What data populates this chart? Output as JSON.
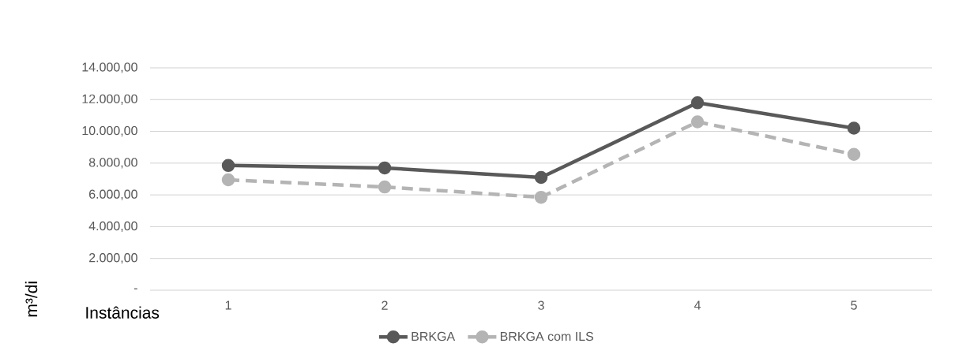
{
  "chart_data": {
    "type": "line",
    "categories": [
      "1",
      "2",
      "3",
      "4",
      "5"
    ],
    "xlabel": "Instâncias",
    "ylabel": "m³/di",
    "series": [
      {
        "name": "BRKGA",
        "color": "#595959",
        "line_style": "solid",
        "values": [
          7850,
          7700,
          7100,
          11800,
          10200
        ]
      },
      {
        "name": "BRKGA com ILS",
        "color": "#b4b4b4",
        "line_style": "dashed",
        "values": [
          6950,
          6500,
          5850,
          10600,
          8550
        ]
      }
    ],
    "ylim": [
      0,
      14000
    ],
    "yticks": [
      {
        "value": 0,
        "label": "-"
      },
      {
        "value": 2000,
        "label": "2.000,00"
      },
      {
        "value": 4000,
        "label": "4.000,00"
      },
      {
        "value": 6000,
        "label": "6.000,00"
      },
      {
        "value": 8000,
        "label": "8.000,00"
      },
      {
        "value": 10000,
        "label": "10.000,00"
      },
      {
        "value": 12000,
        "label": "12.000,00"
      },
      {
        "value": 14000,
        "label": "14.000,00"
      }
    ],
    "grid": "y",
    "legend": "bottom",
    "marker": "circle"
  }
}
